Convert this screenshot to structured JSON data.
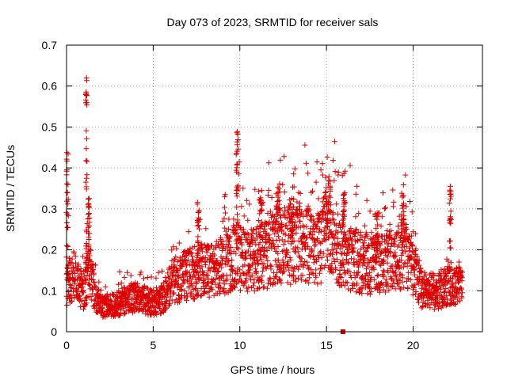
{
  "chart_data": {
    "type": "scatter",
    "title": "Day 073 of 2023, SRMTID for receiver sals",
    "xlabel": "GPS time / hours",
    "ylabel": "SRMTID / TECUs",
    "xlim": [
      0,
      24
    ],
    "ylim": [
      0,
      0.7
    ],
    "x_ticks": [
      0,
      5,
      10,
      15,
      20
    ],
    "x_tick_labels": [
      "0",
      "5",
      "10",
      "15",
      "20"
    ],
    "y_ticks": [
      0,
      0.1,
      0.2,
      0.3,
      0.4,
      0.5,
      0.6,
      0.7
    ],
    "y_tick_labels": [
      "0",
      "0.1",
      "0.2",
      "0.3",
      "0.4",
      "0.5",
      "0.6",
      "0.7"
    ],
    "grid": true,
    "series": [
      {
        "name": "SRMTID",
        "marker": "plus",
        "color": "#dd0000",
        "trend": [
          [
            0.0,
            0.11
          ],
          [
            0.5,
            0.14
          ],
          [
            1.0,
            0.09
          ],
          [
            1.3,
            0.16
          ],
          [
            1.6,
            0.09
          ],
          [
            2.0,
            0.06
          ],
          [
            3.0,
            0.07
          ],
          [
            4.0,
            0.085
          ],
          [
            5.0,
            0.07
          ],
          [
            5.5,
            0.08
          ],
          [
            6.0,
            0.12
          ],
          [
            7.0,
            0.14
          ],
          [
            8.0,
            0.15
          ],
          [
            9.0,
            0.16
          ],
          [
            9.8,
            0.19
          ],
          [
            10.5,
            0.17
          ],
          [
            11.5,
            0.19
          ],
          [
            12.5,
            0.21
          ],
          [
            13.5,
            0.21
          ],
          [
            14.5,
            0.2
          ],
          [
            15.0,
            0.24
          ],
          [
            15.5,
            0.2
          ],
          [
            16.5,
            0.18
          ],
          [
            17.5,
            0.16
          ],
          [
            18.5,
            0.17
          ],
          [
            19.5,
            0.19
          ],
          [
            20.0,
            0.16
          ],
          [
            20.5,
            0.1
          ],
          [
            21.5,
            0.1
          ],
          [
            22.0,
            0.12
          ],
          [
            22.8,
            0.12
          ]
        ],
        "spikes": [
          {
            "x": 0.05,
            "peak": 0.45,
            "width": 0.12
          },
          {
            "x": 1.15,
            "peak": 0.62,
            "width": 0.08
          },
          {
            "x": 1.25,
            "peak": 0.33,
            "width": 0.15
          },
          {
            "x": 7.6,
            "peak": 0.32,
            "width": 0.12
          },
          {
            "x": 9.85,
            "peak": 0.49,
            "width": 0.12
          },
          {
            "x": 11.2,
            "peak": 0.35,
            "width": 0.25
          },
          {
            "x": 12.2,
            "peak": 0.37,
            "width": 0.25
          },
          {
            "x": 13.0,
            "peak": 0.33,
            "width": 0.25
          },
          {
            "x": 15.1,
            "peak": 0.37,
            "width": 0.3
          },
          {
            "x": 16.0,
            "peak": 0.34,
            "width": 0.15
          },
          {
            "x": 17.9,
            "peak": 0.29,
            "width": 0.2
          },
          {
            "x": 19.4,
            "peak": 0.34,
            "width": 0.15
          },
          {
            "x": 22.15,
            "peak": 0.37,
            "width": 0.12
          }
        ],
        "point_count": 2600,
        "x_end": 22.85
      },
      {
        "name": "zero marker",
        "marker": "square",
        "color": "#dd0000",
        "points": [
          [
            15.95,
            0.0
          ]
        ]
      }
    ]
  }
}
